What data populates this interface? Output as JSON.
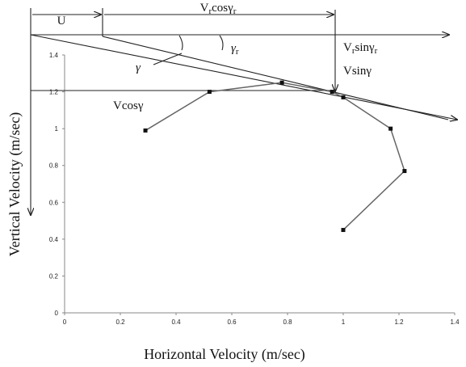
{
  "chart_data": {
    "type": "line",
    "x_label": "Horizontal Velocity (m/sec)",
    "y_label": "Vertical Velocity (m/sec)",
    "series": [
      {
        "color": "#666666",
        "x": [
          0.29,
          0.52,
          0.78,
          0.96,
          1.0,
          1.17,
          1.22,
          1.0
        ],
        "values": [
          0.99,
          1.2,
          1.25,
          1.2,
          1.17,
          1.0,
          0.77,
          0.45
        ]
      }
    ],
    "xlim": [
      0,
      1.4
    ],
    "ylim": [
      0,
      1.4
    ],
    "xticks": [
      0,
      0.2,
      0.4,
      0.6,
      0.8,
      1,
      1.2,
      1.4
    ],
    "yticks": [
      0,
      0.2,
      0.4,
      0.6,
      0.8,
      1,
      1.2,
      1.4
    ],
    "annotations": [
      {
        "parts": [
          "U"
        ]
      },
      {
        "parts": [
          "V",
          "r",
          "cosγ",
          "r"
        ]
      },
      {
        "parts": [
          "V",
          "r",
          "sinγ",
          "r"
        ]
      },
      {
        "parts": [
          "Vsinγ"
        ]
      },
      {
        "parts": [
          "Vcosγ"
        ]
      },
      {
        "parts": [
          "γ"
        ]
      },
      {
        "parts": [
          "γ",
          "r"
        ]
      }
    ]
  }
}
